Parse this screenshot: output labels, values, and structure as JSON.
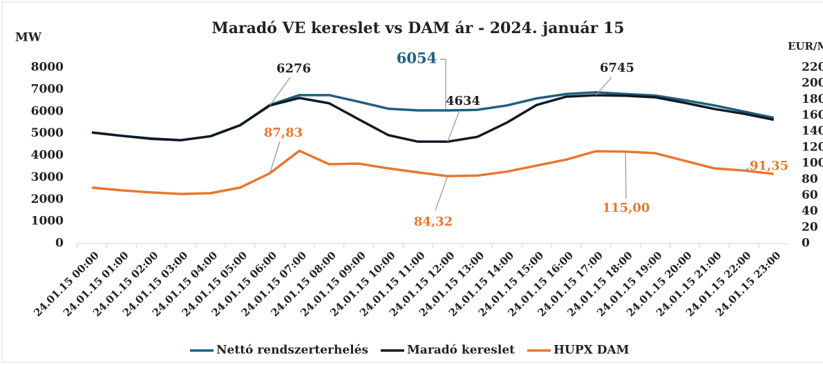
{
  "chart_data": {
    "type": "line",
    "title": "Maradó VE kereslet vs DAM ár - 2024. január 15",
    "y_label": "MW",
    "y2_label": "EUR/MWh",
    "categories": [
      "24.01.15 00:00",
      "24.01.15 01:00",
      "24.01.15 02:00",
      "24.01.15 03:00",
      "24.01.15 04:00",
      "24.01.15 05:00",
      "24.01.15 06:00",
      "24.01.15 07:00",
      "24.01.15 08:00",
      "24.01.15 09:00",
      "24.01.15 10:00",
      "24.01.15 11:00",
      "24.01.15 12:00",
      "24.01.15 13:00",
      "24.01.15 14:00",
      "24.01.15 15:00",
      "24.01.15 16:00",
      "24.01.15 17:00",
      "24.01.15 18:00",
      "24.01.15 19:00",
      "24.01.15 20:00",
      "24.01.15 21:00",
      "24.01.15 22:00",
      "24.01.15 23:00"
    ],
    "series": [
      {
        "name": "Nettó rendszerterhelés",
        "color": "#1f5f7f",
        "values": [
          5050,
          4900,
          4780,
          4700,
          4880,
          5380,
          6300,
          6750,
          6750,
          6450,
          6130,
          6054,
          6054,
          6080,
          6280,
          6600,
          6800,
          6880,
          6800,
          6730,
          6520,
          6280,
          6000,
          5720
        ]
      },
      {
        "name": "Maradó kereslet",
        "color": "#111a24",
        "values": [
          5050,
          4900,
          4760,
          4700,
          4880,
          5380,
          6276,
          6620,
          6380,
          5650,
          4930,
          4634,
          4634,
          4850,
          5500,
          6300,
          6680,
          6745,
          6720,
          6650,
          6400,
          6120,
          5900,
          5630
        ]
      },
      {
        "name": "HUPX DAM",
        "color": "#e8772e",
        "axis": "y2",
        "values": [
          70,
          66.5,
          64,
          62,
          63,
          70,
          87.83,
          116,
          99.2,
          100,
          94,
          89,
          84.32,
          85,
          90,
          97.5,
          105,
          115.5,
          115.0,
          113,
          103.5,
          94,
          91.35,
          87
        ],
        "value_labels": [
          null,
          null,
          null,
          null,
          null,
          null,
          "87,83",
          null,
          null,
          null,
          null,
          null,
          "84,32",
          null,
          null,
          null,
          null,
          null,
          "115,00",
          null,
          null,
          null,
          "91,35",
          null
        ]
      }
    ],
    "ylim": [
      0,
      8000
    ],
    "yticks": [
      0,
      1000,
      2000,
      3000,
      4000,
      5000,
      6000,
      7000,
      8000
    ],
    "y2lim": [
      0,
      220
    ],
    "y2ticks": [
      0,
      20,
      40,
      60,
      80,
      100,
      120,
      140,
      160,
      180,
      200,
      220
    ],
    "legend": "bottom"
  }
}
